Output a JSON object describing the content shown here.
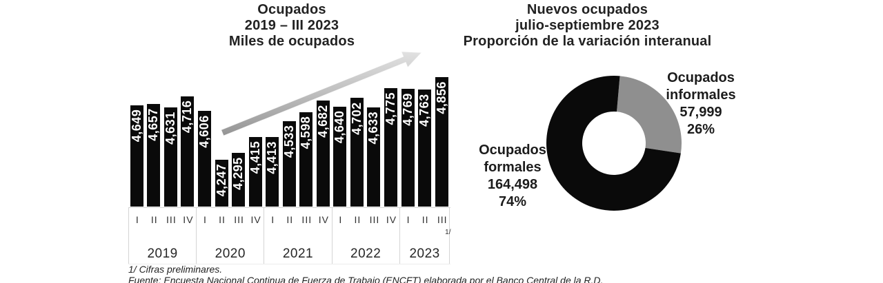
{
  "page": {
    "background": "#ffffff"
  },
  "left_chart": {
    "title_lines": [
      "Ocupados",
      "2019 – III 2023",
      "Miles de ocupados"
    ]
  },
  "right_chart": {
    "title_lines": [
      "Nuevos ocupados",
      "julio-septiembre 2023",
      "Proporción de la variación interanual"
    ]
  },
  "chart_data": [
    {
      "type": "bar",
      "title": "Ocupados 2019 – III 2023",
      "units_label": "Miles de ocupados",
      "bar_color": "#0a0a0a",
      "value_label_color": "#ffffff",
      "trend_arrow": "upward",
      "groups": [
        {
          "year": "2019",
          "quarters": [
            "I",
            "II",
            "III",
            "IV"
          ],
          "values": [
            4649,
            4657,
            4631,
            4716
          ]
        },
        {
          "year": "2020",
          "quarters": [
            "I",
            "II",
            "III",
            "IV"
          ],
          "values": [
            4606,
            4247,
            4295,
            4415
          ]
        },
        {
          "year": "2021",
          "quarters": [
            "I",
            "II",
            "III",
            "IV"
          ],
          "values": [
            4413,
            4533,
            4598,
            4682
          ]
        },
        {
          "year": "2022",
          "quarters": [
            "I",
            "II",
            "III",
            "IV"
          ],
          "values": [
            4640,
            4702,
            4633,
            4775
          ]
        },
        {
          "year": "2023",
          "quarters": [
            "I",
            "II",
            "III"
          ],
          "values": [
            4769,
            4763,
            4856
          ],
          "footnote_on": "III",
          "footnote_marker": "1/"
        }
      ]
    },
    {
      "type": "donut",
      "title": "Nuevos ocupados julio-septiembre 2023",
      "subtitle": "Proporción de la variación interanual",
      "start_angle_deg": 5,
      "slices": [
        {
          "name": "Ocupados informales",
          "label_lines": [
            "Ocupados",
            "informales"
          ],
          "value": 57999,
          "value_text": "57,999",
          "pct": 26,
          "pct_text": "26%",
          "color": "#8f8f8f"
        },
        {
          "name": "Ocupados formales",
          "label_lines": [
            "Ocupados",
            "formales"
          ],
          "value": 164498,
          "value_text": "164,498",
          "pct": 74,
          "pct_text": "74%",
          "color": "#0a0a0a"
        }
      ]
    }
  ],
  "footnotes": {
    "note": "1/ Cifras preliminares.",
    "source": "Fuente: Encuesta Nacional Continua de Fuerza de Trabajo (ENCFT) elaborada por el Banco Central de la R.D."
  }
}
